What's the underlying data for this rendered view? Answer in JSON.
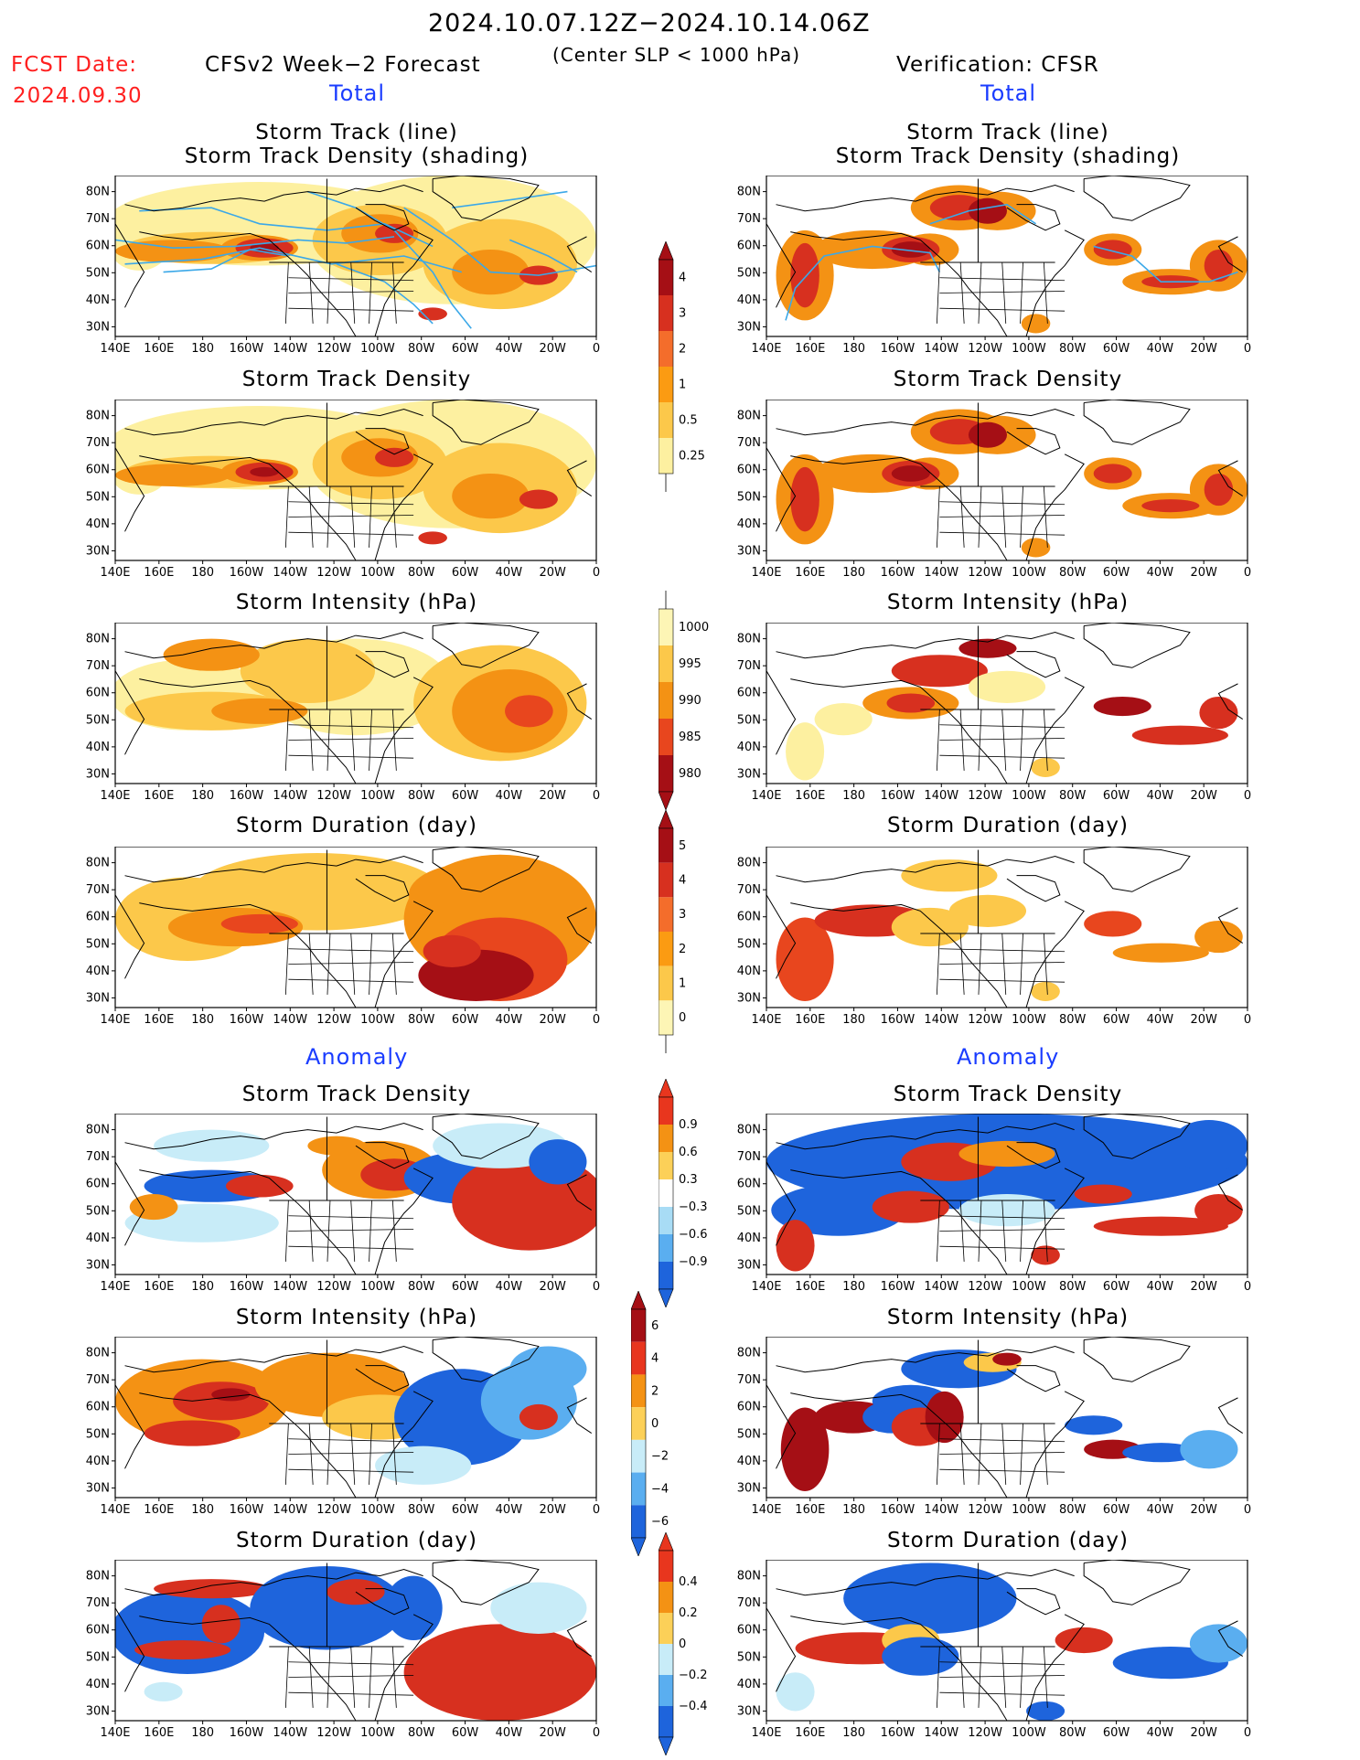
{
  "header": {
    "title": "2024.10.07.12Z−2024.10.14.06Z",
    "subtitle": "(Center SLP < 1000 hPa)",
    "fcst_label": "FCST Date:",
    "fcst_date": "2024.09.30",
    "left_model": "CFSv2 Week−2 Forecast",
    "right_model": "Verification: CFSR",
    "total_label": "Total",
    "anomaly_label": "Anomaly"
  },
  "panel_titles": {
    "track_line": "Storm Track (line)",
    "track_shading": "Storm Track Density (shading)",
    "density": "Storm Track Density",
    "intensity": "Storm Intensity (hPa)",
    "duration": "Storm Duration (day)"
  },
  "axes": {
    "lon_ticks": [
      "140E",
      "160E",
      "180",
      "160W",
      "140W",
      "120W",
      "100W",
      "80W",
      "60W",
      "40W",
      "20W",
      "0"
    ],
    "lat_ticks": [
      "80N",
      "70N",
      "60N",
      "50N",
      "40N",
      "30N"
    ]
  },
  "colorbars": {
    "density": {
      "labels": [
        "4",
        "3",
        "2",
        "1",
        "0.5",
        "0.25"
      ],
      "colors": [
        "#a50f15",
        "#d7301f",
        "#f46d2b",
        "#fb9b12",
        "#fcc84a",
        "#fdf0a0"
      ]
    },
    "intensity": {
      "labels": [
        "1000",
        "995",
        "990",
        "985",
        "980"
      ],
      "colors": [
        "#fdf5b5",
        "#fcc84a",
        "#f49214",
        "#e8461e",
        "#a50f15"
      ]
    },
    "duration": {
      "labels": [
        "5",
        "4",
        "3",
        "2",
        "1",
        "0"
      ],
      "colors": [
        "#a50f15",
        "#d7301f",
        "#f46d2b",
        "#fb9b12",
        "#fcc84a",
        "#fdf5b5"
      ]
    },
    "anom_density": {
      "labels": [
        "0.9",
        "0.6",
        "0.3",
        "−0.3",
        "−0.6",
        "−0.9"
      ],
      "colors": [
        "#e8361e",
        "#f49214",
        "#fcd058",
        "#ffffff",
        "#a8dcf5",
        "#5aaef0",
        "#1e64dc"
      ]
    },
    "anom_intensity": {
      "labels": [
        "6",
        "4",
        "2",
        "0",
        "−2",
        "−4",
        "−6"
      ],
      "colors": [
        "#a50f15",
        "#e8361e",
        "#f49214",
        "#fcd058",
        "#c8ecf8",
        "#5aaef0",
        "#1e64dc"
      ]
    },
    "anom_duration": {
      "labels": [
        "0.4",
        "0.2",
        "0",
        "−0.2",
        "−0.4"
      ],
      "colors": [
        "#e8361e",
        "#f49214",
        "#fcd058",
        "#c8ecf8",
        "#5aaef0",
        "#1e64dc"
      ]
    }
  },
  "colors": {
    "dark_red": "#a50f15",
    "red": "#d7301f",
    "orange_red": "#e8461e",
    "orange": "#f49214",
    "light_orange": "#fcc84a",
    "yellow": "#fdf0a0",
    "track_line": "#3ba8e8",
    "blue": "#1e64dc",
    "mid_blue": "#5aaef0",
    "light_blue": "#c8ecf8"
  }
}
